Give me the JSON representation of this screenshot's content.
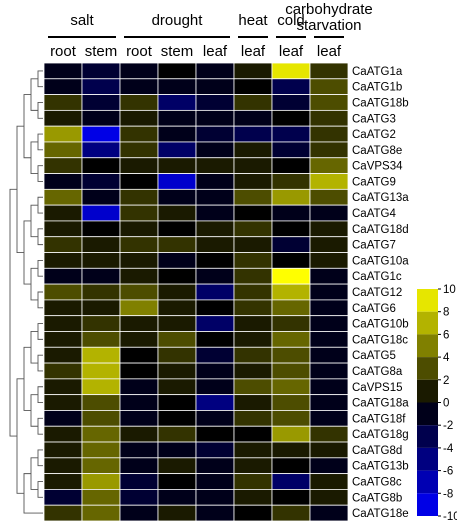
{
  "chart_data": {
    "type": "heatmap",
    "column_groups": [
      {
        "label": "salt",
        "columns": [
          "root",
          "stem"
        ]
      },
      {
        "label": "drought",
        "columns": [
          "root",
          "stem",
          "leaf"
        ]
      },
      {
        "label": "heat",
        "columns": [
          "leaf"
        ]
      },
      {
        "label": "cold",
        "columns": [
          "leaf"
        ]
      },
      {
        "label": "carbohydrate starvation",
        "columns": [
          "leaf"
        ]
      }
    ],
    "rows": [
      "CaATG1a",
      "CaATG1b",
      "CaATG18b",
      "CaATG3",
      "CaATG2",
      "CaATG8e",
      "CaVPS34",
      "CaATG9",
      "CaATG13a",
      "CaATG4",
      "CaATG18d",
      "CaATG7",
      "CaATG10a",
      "CaATG1c",
      "CaATG12",
      "CaATG6",
      "CaATG10b",
      "CaATG18c",
      "CaATG5",
      "CaATG8a",
      "CaVPS15",
      "CaATG18a",
      "CaATG18f",
      "CaATG18g",
      "CaATG8d",
      "CaATG13b",
      "CaATG8c",
      "CaATG8b",
      "CaATG18e"
    ],
    "values": [
      [
        -1,
        -2,
        -1,
        0,
        -1,
        1,
        9,
        2
      ],
      [
        -1,
        -3,
        -1,
        -1,
        -1,
        0,
        -3,
        3
      ],
      [
        2,
        -2,
        2,
        -4,
        -2,
        2,
        -2,
        3
      ],
      [
        1,
        -1,
        1,
        -1,
        -1,
        -1,
        0,
        2
      ],
      [
        6,
        -9,
        2,
        -1,
        -2,
        -3,
        -3,
        2
      ],
      [
        4,
        -5,
        2,
        -4,
        -1,
        1,
        -2,
        2
      ],
      [
        2,
        0,
        1,
        1,
        1,
        1,
        0,
        4
      ],
      [
        -1,
        -2,
        0,
        -8,
        -1,
        1,
        2,
        7
      ],
      [
        4,
        -1,
        2,
        -1,
        -1,
        3,
        6,
        3
      ],
      [
        1,
        -8,
        2,
        1,
        -1,
        0,
        -1,
        -1
      ],
      [
        1,
        0,
        1,
        0,
        1,
        2,
        0,
        1
      ],
      [
        2,
        1,
        2,
        2,
        1,
        1,
        -2,
        1
      ],
      [
        1,
        1,
        1,
        -1,
        0,
        2,
        0,
        1
      ],
      [
        -1,
        -1,
        1,
        0,
        -1,
        2,
        10,
        -1
      ],
      [
        3,
        2,
        3,
        1,
        -4,
        2,
        7,
        -1
      ],
      [
        1,
        1,
        5,
        1,
        0,
        2,
        4,
        -1
      ],
      [
        1,
        2,
        1,
        1,
        -4,
        1,
        2,
        -1
      ],
      [
        1,
        3,
        1,
        3,
        0,
        1,
        4,
        -1
      ],
      [
        1,
        7,
        0,
        2,
        -2,
        2,
        3,
        -1
      ],
      [
        2,
        7,
        0,
        1,
        -1,
        1,
        3,
        -1
      ],
      [
        1,
        7,
        -1,
        1,
        -1,
        3,
        4,
        -1
      ],
      [
        1,
        3,
        -1,
        0,
        -5,
        1,
        3,
        -1
      ],
      [
        -1,
        3,
        -1,
        0,
        -1,
        2,
        3,
        -1
      ],
      [
        1,
        4,
        1,
        2,
        0,
        0,
        6,
        2
      ],
      [
        1,
        4,
        -1,
        -1,
        -2,
        1,
        1,
        1
      ],
      [
        1,
        4,
        -1,
        1,
        -1,
        1,
        0,
        -1
      ],
      [
        1,
        6,
        -2,
        0,
        -1,
        2,
        -4,
        1
      ],
      [
        -2,
        4,
        -2,
        -1,
        -1,
        1,
        0,
        1
      ],
      [
        2,
        4,
        -1,
        1,
        -1,
        0,
        2,
        -1
      ]
    ],
    "color_scale": {
      "min": -10,
      "max": 10,
      "low_color": "#0000ff",
      "mid_color": "#000000",
      "high_color": "#ffff00",
      "ticks": [
        10,
        8,
        6,
        4,
        2,
        0,
        -2,
        -4,
        -6,
        -8,
        -10
      ]
    },
    "dendrogram": "row clustering tree on left",
    "grid_color": "#ffffff"
  }
}
